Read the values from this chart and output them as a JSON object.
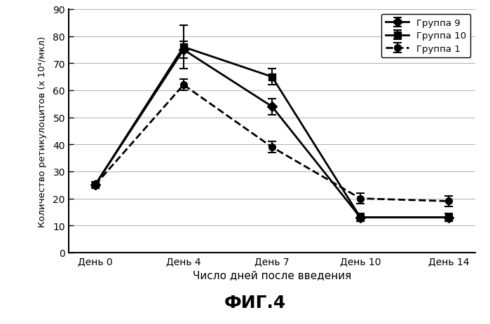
{
  "x_labels": [
    "День 0",
    "День 4",
    "День 7",
    "День 10",
    "День 14"
  ],
  "x_positions": [
    0,
    1,
    2,
    3,
    4
  ],
  "group9": {
    "label": "Группа 9",
    "y": [
      25,
      75,
      54,
      13,
      13
    ],
    "yerr": [
      1,
      3,
      3,
      1.5,
      1.5
    ],
    "color": "#000000",
    "linestyle": "-",
    "marker": "D",
    "linewidth": 2.0,
    "markersize": 7
  },
  "group10": {
    "label": "Группа 10",
    "y": [
      25,
      76,
      65,
      13,
      13
    ],
    "yerr": [
      1,
      8,
      3,
      1.5,
      1.5
    ],
    "color": "#000000",
    "linestyle": "-",
    "marker": "s",
    "linewidth": 2.0,
    "markersize": 7
  },
  "group1": {
    "label": "Группа 1",
    "y": [
      25,
      62,
      39,
      20,
      19
    ],
    "yerr": [
      1,
      2,
      2,
      2,
      2
    ],
    "color": "#000000",
    "linestyle": "--",
    "marker": "o",
    "linewidth": 2.0,
    "markersize": 7
  },
  "ylabel": "Количество ретикулоцитов (х 10⁴/мкл)",
  "xlabel": "Число дней после введения",
  "fig_title": "ФИГ.4",
  "ylim": [
    0,
    90
  ],
  "yticks": [
    0,
    10,
    20,
    30,
    40,
    50,
    60,
    70,
    80,
    90
  ],
  "background_color": "#ffffff",
  "grid_color": "#b0b0b0"
}
